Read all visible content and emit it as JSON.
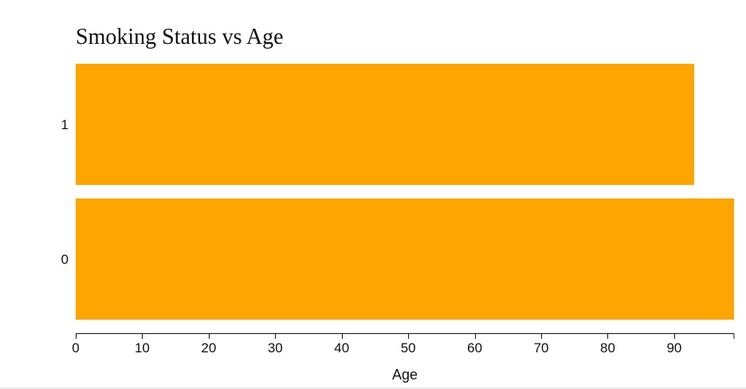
{
  "chart_data": {
    "type": "bar",
    "orientation": "horizontal",
    "title": "Smoking Status vs Age",
    "xlabel": "Age",
    "ylabel": "",
    "categories": [
      "1",
      "0"
    ],
    "values": [
      93,
      99
    ],
    "xlim": [
      0,
      99
    ],
    "xticks": [
      0,
      10,
      20,
      30,
      40,
      50,
      60,
      70,
      80,
      90
    ],
    "bar_color": "#FFA500",
    "grid": false,
    "legend": "none"
  }
}
